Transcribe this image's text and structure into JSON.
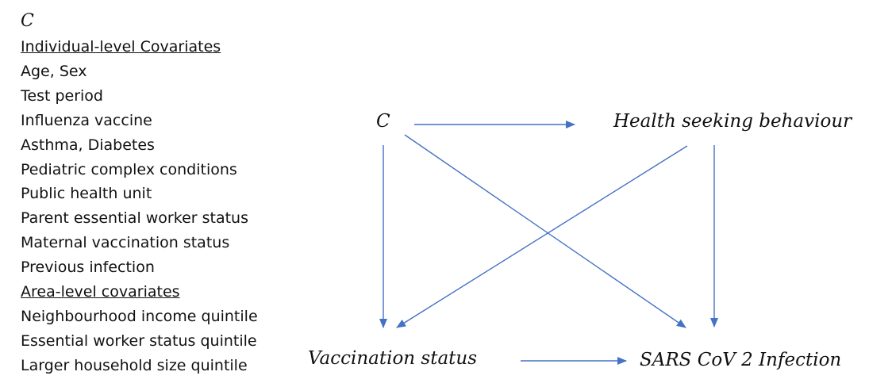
{
  "covariates_panel": {
    "variable": "C",
    "individual_heading": "Individual-level Covariates",
    "individual_items": [
      "Age, Sex",
      "Test period",
      "Influenza vaccine",
      "Asthma, Diabetes",
      "Pediatric complex conditions",
      "Public health unit",
      "Parent essential worker status",
      "Maternal vaccination status",
      "Previous infection"
    ],
    "area_heading": "Area-level covariates",
    "area_items": [
      "Neighbourhood income quintile",
      "Essential worker status quintile",
      "Larger household size quintile"
    ]
  },
  "dag": {
    "nodes": {
      "confounders": "C",
      "health_seeking": "Health seeking behaviour",
      "vaccination": "Vaccination status",
      "infection": "SARS CoV 2 Infection"
    },
    "edges": [
      {
        "from": "confounders",
        "to": "health_seeking"
      },
      {
        "from": "confounders",
        "to": "vaccination"
      },
      {
        "from": "confounders",
        "to": "infection"
      },
      {
        "from": "health_seeking",
        "to": "vaccination"
      },
      {
        "from": "health_seeking",
        "to": "infection"
      },
      {
        "from": "vaccination",
        "to": "infection"
      }
    ],
    "arrow_color": "#4472C4"
  }
}
